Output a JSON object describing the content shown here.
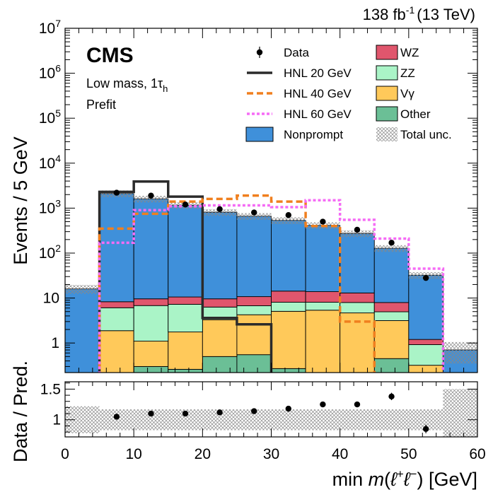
{
  "header": {
    "lumi_label": "138 fb",
    "lumi_exp": "-1",
    "energy_label": "(13 TeV)",
    "experiment": "CMS",
    "region_label": "Low mass, 1τ",
    "region_sub": "h",
    "stage_label": "Prefit"
  },
  "colors": {
    "nonprompt": "#3f90da",
    "wz": "#e0566d",
    "zz": "#aaf4c7",
    "vgamma": "#ffc95a",
    "other": "#6bbf96",
    "hnl20": "#2b2b2b",
    "hnl40": "#f07f1e",
    "hnl60": "#f56cf5"
  },
  "chart_data": {
    "type": "bar",
    "title": "",
    "x_edges": [
      0,
      5,
      10,
      15,
      20,
      25,
      30,
      35,
      40,
      45,
      50,
      55,
      60
    ],
    "xlabel": "min m(ℓ+ℓ−) [GeV]",
    "xlabel_parts": {
      "a": "min ",
      "m": "m",
      "open": "(",
      "l1": "ℓ",
      "p1": "+",
      "l2": "ℓ",
      "p2": "−",
      "close": ")",
      "unit": " [GeV]"
    },
    "xlim": [
      0,
      60
    ],
    "x_ticks": [
      "0",
      "10",
      "20",
      "30",
      "40",
      "50",
      "60"
    ],
    "top_panel": {
      "ylabel": "Events / 5 GeV",
      "yscale": "log",
      "ylim": [
        0.22,
        10000000
      ],
      "y_ticks": [
        {
          "value": 1,
          "base": "1",
          "exp": ""
        },
        {
          "value": 10,
          "base": "10",
          "exp": ""
        },
        {
          "value": 100,
          "base": "10",
          "exp": "2"
        },
        {
          "value": 1000,
          "base": "10",
          "exp": "3"
        },
        {
          "value": 10000,
          "base": "10",
          "exp": "4"
        },
        {
          "value": 100000,
          "base": "10",
          "exp": "5"
        },
        {
          "value": 1000000,
          "base": "10",
          "exp": "6"
        },
        {
          "value": 10000000,
          "base": "10",
          "exp": "7"
        }
      ],
      "stack_order": [
        "other",
        "vgamma",
        "zz",
        "wz",
        "nonprompt"
      ],
      "stack": {
        "other": {
          "name": "Other",
          "values": [
            0,
            0.18,
            0.3,
            0.26,
            0.5,
            0.55,
            0.27,
            0.17,
            0.17,
            0.45,
            0.2,
            0
          ]
        },
        "vgamma": {
          "name": "Vγ",
          "values": [
            0,
            1.7,
            0.8,
            1.5,
            2.8,
            3.7,
            4.8,
            5.2,
            4.5,
            2.7,
            0.12,
            0
          ]
        },
        "zz": {
          "name": "ZZ",
          "values": [
            0,
            4.2,
            5.7,
            5.5,
            3.0,
            2.5,
            3.0,
            2.7,
            3.3,
            1.8,
            0.6,
            0
          ]
        },
        "wz": {
          "name": "WZ",
          "values": [
            0,
            2.2,
            2.8,
            3.3,
            3.3,
            4.0,
            6.2,
            5.8,
            5.0,
            3.0,
            0.28,
            0
          ]
        },
        "nonprompt": {
          "name": "Nonprompt",
          "values": [
            16,
            2100,
            1600,
            1150,
            800,
            650,
            520,
            400,
            260,
            120,
            31,
            0.7
          ]
        }
      },
      "data": {
        "name": "Data",
        "x": [
          7.5,
          12.5,
          17.5,
          22.5,
          27.5,
          32.5,
          37.5,
          42.5,
          47.5,
          52.5
        ],
        "y": [
          2200,
          1900,
          1200,
          950,
          800,
          700,
          500,
          330,
          170,
          28
        ]
      },
      "signals": [
        {
          "key": "hnl20",
          "name": "HNL 20 GeV",
          "name_main": "HNL 20",
          "unit": "GeV",
          "style": "solid",
          "values": [
            0.2,
            2300,
            3900,
            1800,
            3.6,
            2.6,
            0.2,
            0.2,
            0.2,
            0.2,
            0.2,
            0.2
          ]
        },
        {
          "key": "hnl40",
          "name": "HNL 40 GeV",
          "name_main": "HNL 40",
          "unit": "GeV",
          "style": "dashed",
          "values": [
            0.2,
            350,
            750,
            1400,
            1600,
            1900,
            1400,
            400,
            3,
            0.2,
            0.2,
            0.2
          ]
        },
        {
          "key": "hnl60",
          "name": "HNL 60 GeV",
          "name_main": "HNL 60",
          "unit": "GeV",
          "style": "dotted",
          "values": [
            0.2,
            170,
            900,
            1100,
            1150,
            1150,
            1050,
            1500,
            550,
            210,
            45,
            0.2
          ]
        }
      ],
      "uncertainty": {
        "name": "Total unc.",
        "rel": [
          0.22,
          0.17,
          0.17,
          0.17,
          0.17,
          0.17,
          0.17,
          0.17,
          0.17,
          0.17,
          0.17,
          0.5
        ]
      },
      "legend": {
        "left": [
          {
            "key": "data",
            "label": "Data"
          },
          {
            "key": "hnl20",
            "label": "HNL 20 GeV"
          },
          {
            "key": "hnl40",
            "label": "HNL 40 GeV"
          },
          {
            "key": "hnl60",
            "label": "HNL 60 GeV"
          },
          {
            "key": "nonprompt",
            "label": "Nonprompt"
          }
        ],
        "right": [
          {
            "key": "wz",
            "label": "WZ"
          },
          {
            "key": "zz",
            "label": "ZZ"
          },
          {
            "key": "vgamma",
            "label": "Vγ"
          },
          {
            "key": "other",
            "label": "Other"
          },
          {
            "key": "unc",
            "label": "Total unc."
          }
        ],
        "placement": "top-right"
      }
    },
    "ratio_panel": {
      "ylabel": "Data / Pred.",
      "ylim": [
        0.72,
        1.62
      ],
      "y_ticks": [
        "1",
        "1.5"
      ],
      "x": [
        7.5,
        12.5,
        17.5,
        22.5,
        27.5,
        32.5,
        37.5,
        42.5,
        47.5,
        52.5
      ],
      "y": [
        1.05,
        1.1,
        1.1,
        1.12,
        1.14,
        1.18,
        1.25,
        1.25,
        1.38,
        0.85
      ],
      "yerr": [
        0.02,
        0.02,
        0.02,
        0.02,
        0.02,
        0.03,
        0.03,
        0.04,
        0.06,
        0.07
      ],
      "band_rel": [
        0.22,
        0.17,
        0.17,
        0.17,
        0.17,
        0.17,
        0.17,
        0.17,
        0.17,
        0.17,
        0.17,
        0.5
      ]
    }
  }
}
